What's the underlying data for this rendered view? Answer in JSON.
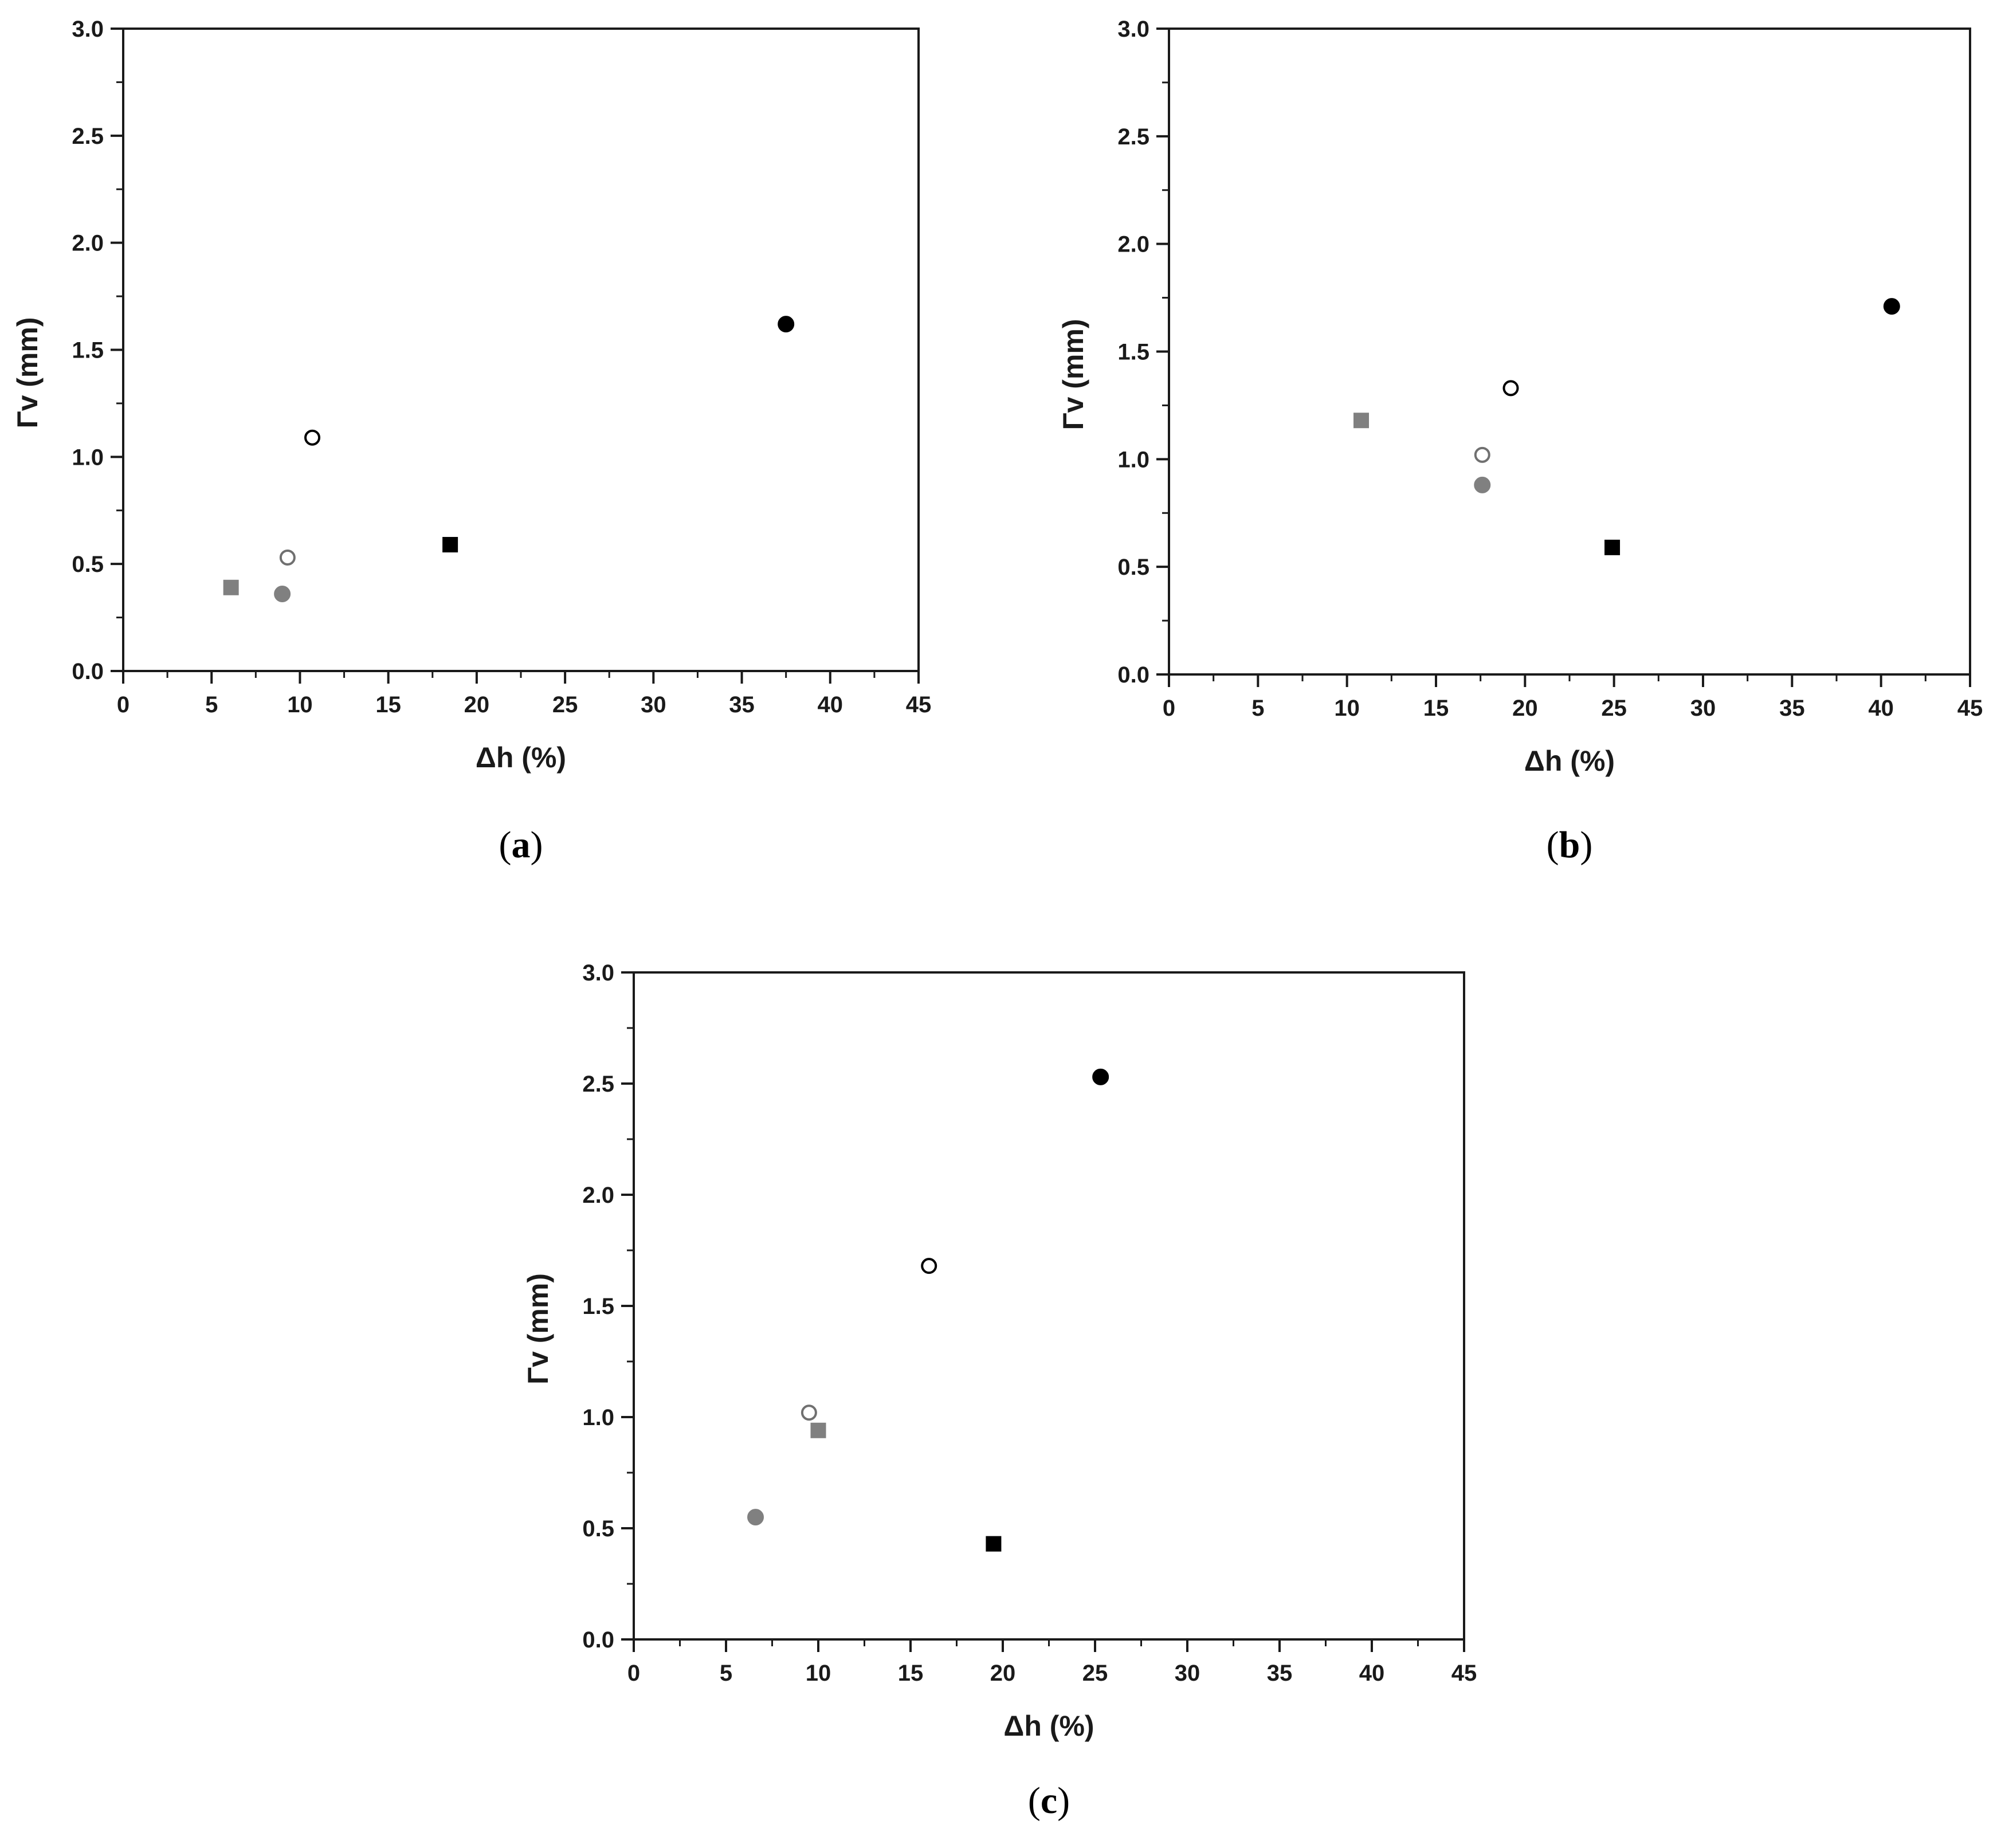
{
  "chart_data": [
    {
      "type": "scatter",
      "panel": "(a)",
      "panel_letter": "a",
      "xlabel": "Δh (%)",
      "ylabel": "Γv (mm)",
      "xlim": [
        0,
        45
      ],
      "ylim": [
        0,
        3.0
      ],
      "xticks": [
        "0",
        "5",
        "10",
        "15",
        "20",
        "25",
        "30",
        "35",
        "40",
        "45"
      ],
      "yticks": [
        "0.0",
        "0.5",
        "1.0",
        "1.5",
        "2.0",
        "2.5",
        "3.0"
      ],
      "points": [
        {
          "x": 6.1,
          "y": 0.39,
          "marker": "square",
          "fill": "#808080",
          "stroke": "#808080"
        },
        {
          "x": 9.0,
          "y": 0.36,
          "marker": "circle",
          "fill": "#808080",
          "stroke": "#808080"
        },
        {
          "x": 9.3,
          "y": 0.53,
          "marker": "circle",
          "fill": "#ffffff",
          "stroke": "#707070"
        },
        {
          "x": 10.7,
          "y": 1.09,
          "marker": "circle",
          "fill": "#ffffff",
          "stroke": "#000000"
        },
        {
          "x": 18.5,
          "y": 0.59,
          "marker": "square",
          "fill": "#000000",
          "stroke": "#000000"
        },
        {
          "x": 37.5,
          "y": 1.62,
          "marker": "circle",
          "fill": "#000000",
          "stroke": "#000000"
        }
      ]
    },
    {
      "type": "scatter",
      "panel": "(b)",
      "panel_letter": "b",
      "xlabel": "Δh (%)",
      "ylabel": "Γv (mm)",
      "xlim": [
        0,
        45
      ],
      "ylim": [
        0,
        3.0
      ],
      "xticks": [
        "0",
        "5",
        "10",
        "15",
        "20",
        "25",
        "30",
        "35",
        "40",
        "45"
      ],
      "yticks": [
        "0.0",
        "0.5",
        "1.0",
        "1.5",
        "2.0",
        "2.5",
        "3.0"
      ],
      "points": [
        {
          "x": 10.8,
          "y": 1.18,
          "marker": "square",
          "fill": "#808080",
          "stroke": "#808080"
        },
        {
          "x": 17.6,
          "y": 0.88,
          "marker": "circle",
          "fill": "#808080",
          "stroke": "#808080"
        },
        {
          "x": 17.6,
          "y": 1.02,
          "marker": "circle",
          "fill": "#ffffff",
          "stroke": "#707070"
        },
        {
          "x": 19.2,
          "y": 1.33,
          "marker": "circle",
          "fill": "#ffffff",
          "stroke": "#000000"
        },
        {
          "x": 24.9,
          "y": 0.59,
          "marker": "square",
          "fill": "#000000",
          "stroke": "#000000"
        },
        {
          "x": 40.6,
          "y": 1.71,
          "marker": "circle",
          "fill": "#000000",
          "stroke": "#000000"
        }
      ]
    },
    {
      "type": "scatter",
      "panel": "(c)",
      "panel_letter": "c",
      "xlabel": "Δh (%)",
      "ylabel": "Γv (mm)",
      "xlim": [
        0,
        45
      ],
      "ylim": [
        0,
        3.0
      ],
      "xticks": [
        "0",
        "5",
        "10",
        "15",
        "20",
        "25",
        "30",
        "35",
        "40",
        "45"
      ],
      "yticks": [
        "0.0",
        "0.5",
        "1.0",
        "1.5",
        "2.0",
        "2.5",
        "3.0"
      ],
      "points": [
        {
          "x": 6.6,
          "y": 0.55,
          "marker": "circle",
          "fill": "#808080",
          "stroke": "#808080"
        },
        {
          "x": 9.5,
          "y": 1.02,
          "marker": "circle",
          "fill": "#ffffff",
          "stroke": "#707070"
        },
        {
          "x": 10.0,
          "y": 0.94,
          "marker": "square",
          "fill": "#808080",
          "stroke": "#808080"
        },
        {
          "x": 16.0,
          "y": 1.68,
          "marker": "circle",
          "fill": "#ffffff",
          "stroke": "#000000"
        },
        {
          "x": 19.5,
          "y": 0.43,
          "marker": "square",
          "fill": "#000000",
          "stroke": "#000000"
        },
        {
          "x": 25.3,
          "y": 2.53,
          "marker": "circle",
          "fill": "#000000",
          "stroke": "#000000"
        }
      ]
    }
  ]
}
